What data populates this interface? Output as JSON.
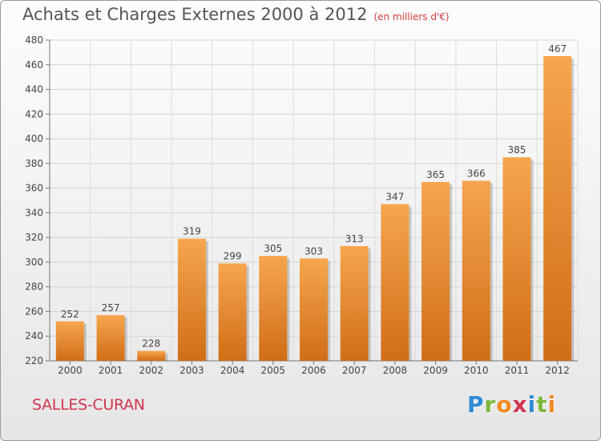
{
  "title": "Achats et Charges Externes 2000 à 2012",
  "unit": "(en milliers d'€)",
  "commune": "SALLES-CURAN",
  "logo": {
    "letters": [
      "P",
      "r",
      "o",
      "x",
      "i",
      "t",
      "i"
    ],
    "colors": [
      "#2f8bd6",
      "#7cb83b",
      "#f08a24",
      "#d2354e",
      "#2f8bd6",
      "#7cb83b",
      "#f08a24"
    ]
  },
  "chart_data": {
    "type": "bar",
    "categories": [
      "2000",
      "2001",
      "2002",
      "2003",
      "2004",
      "2005",
      "2006",
      "2007",
      "2008",
      "2009",
      "2010",
      "2011",
      "2012"
    ],
    "values": [
      252,
      257,
      228,
      319,
      299,
      305,
      303,
      313,
      347,
      365,
      366,
      385,
      467
    ],
    "ylim": [
      220,
      480
    ],
    "yticks": [
      220,
      240,
      260,
      280,
      300,
      320,
      340,
      360,
      380,
      400,
      420,
      440,
      460,
      480
    ],
    "grid": true,
    "bar_color": "#f09a3c"
  }
}
